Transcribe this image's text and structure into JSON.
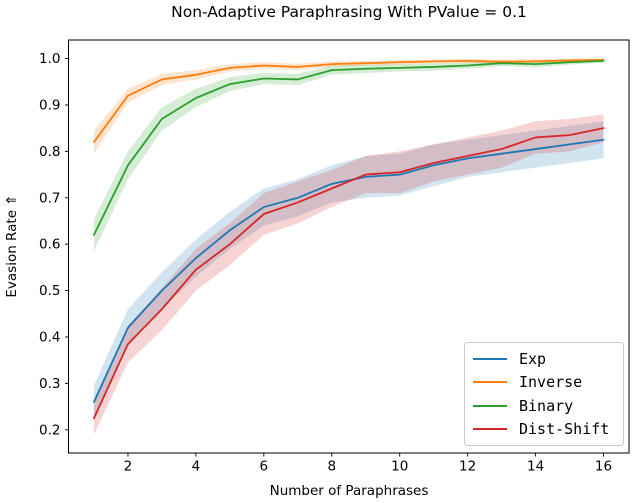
{
  "chart_data": {
    "type": "line",
    "title": "Non-Adaptive Paraphrasing With PValue = 0.1",
    "xlabel": "Number of Paraphrases",
    "ylabel": "Evasion Rate ⇑",
    "x": [
      1,
      2,
      3,
      4,
      5,
      6,
      7,
      8,
      9,
      10,
      11,
      12,
      13,
      14,
      15,
      16
    ],
    "xticks": [
      2,
      4,
      6,
      8,
      10,
      12,
      14,
      16
    ],
    "yticks": [
      0.2,
      0.3,
      0.4,
      0.5,
      0.6,
      0.7,
      0.8,
      0.9,
      1.0
    ],
    "xlim": [
      0.25,
      16.75
    ],
    "ylim": [
      0.15,
      1.04
    ],
    "grid": false,
    "legend_position": "lower right",
    "band_opacity": 0.2,
    "series": [
      {
        "name": "Exp",
        "color": "#1f77b4",
        "values": [
          0.26,
          0.42,
          0.5,
          0.57,
          0.63,
          0.68,
          0.7,
          0.73,
          0.745,
          0.75,
          0.77,
          0.785,
          0.795,
          0.805,
          0.815,
          0.825
        ],
        "band": [
          0.035,
          0.04,
          0.04,
          0.04,
          0.04,
          0.04,
          0.04,
          0.04,
          0.045,
          0.045,
          0.045,
          0.04,
          0.04,
          0.04,
          0.04,
          0.04
        ]
      },
      {
        "name": "Inverse",
        "color": "#ff7f0e",
        "values": [
          0.82,
          0.92,
          0.955,
          0.965,
          0.98,
          0.985,
          0.982,
          0.988,
          0.99,
          0.992,
          0.994,
          0.995,
          0.993,
          0.994,
          0.996,
          0.997
        ],
        "band": [
          0.025,
          0.015,
          0.012,
          0.01,
          0.008,
          0.007,
          0.007,
          0.006,
          0.005,
          0.005,
          0.004,
          0.004,
          0.005,
          0.005,
          0.004,
          0.003
        ]
      },
      {
        "name": "Binary",
        "color": "#2ca02c",
        "values": [
          0.62,
          0.77,
          0.87,
          0.915,
          0.945,
          0.957,
          0.955,
          0.975,
          0.978,
          0.98,
          0.982,
          0.985,
          0.99,
          0.988,
          0.992,
          0.995
        ],
        "band": [
          0.035,
          0.03,
          0.025,
          0.02,
          0.015,
          0.012,
          0.012,
          0.01,
          0.009,
          0.008,
          0.008,
          0.007,
          0.006,
          0.007,
          0.005,
          0.004
        ]
      },
      {
        "name": "Dist-Shift",
        "color": "#d62728",
        "values": [
          0.225,
          0.385,
          0.46,
          0.545,
          0.6,
          0.665,
          0.69,
          0.72,
          0.75,
          0.755,
          0.775,
          0.79,
          0.805,
          0.83,
          0.835,
          0.85
        ],
        "band": [
          0.035,
          0.04,
          0.045,
          0.045,
          0.045,
          0.045,
          0.045,
          0.04,
          0.04,
          0.045,
          0.04,
          0.04,
          0.04,
          0.035,
          0.035,
          0.03
        ]
      }
    ]
  }
}
